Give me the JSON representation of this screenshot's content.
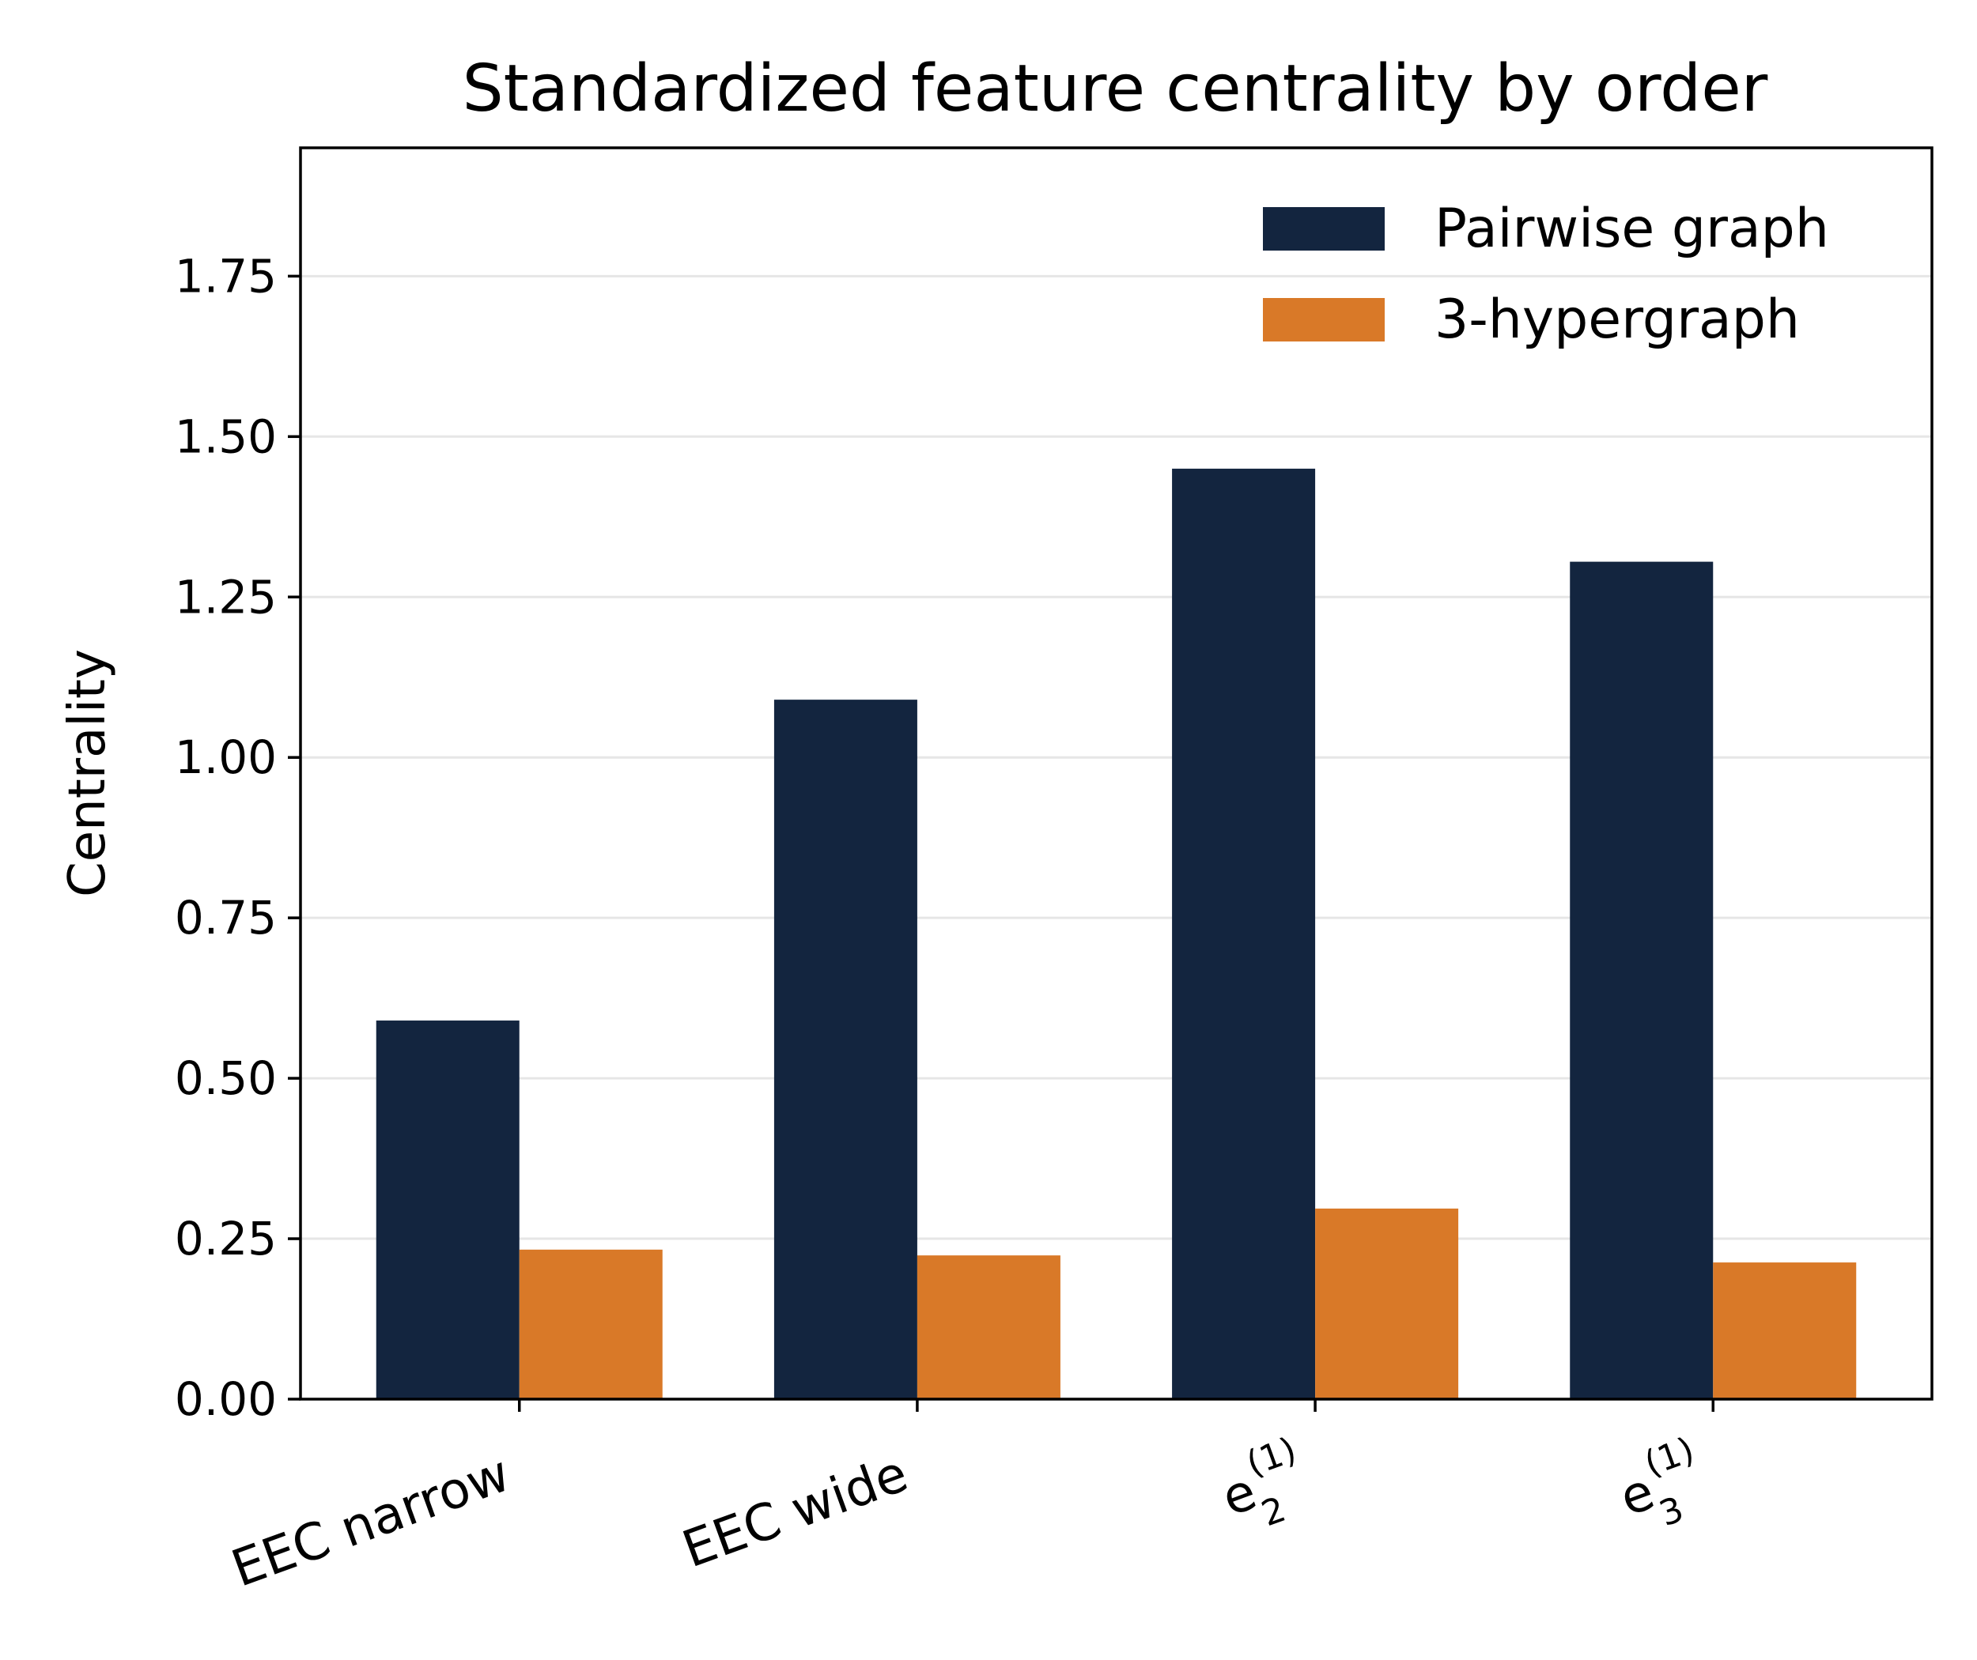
{
  "chart_data": {
    "type": "bar",
    "title": "Standardized feature centrality by order",
    "xlabel": "",
    "ylabel": "Centrality",
    "ylim": [
      0,
      1.95
    ],
    "yticks": [
      "0.00",
      "0.25",
      "0.50",
      "0.75",
      "1.00",
      "1.25",
      "1.50",
      "1.75"
    ],
    "categories": [
      {
        "base": "EEC narrow",
        "sub": "",
        "sup": ""
      },
      {
        "base": "EEC wide",
        "sub": "",
        "sup": ""
      },
      {
        "base": "e",
        "sub": "2",
        "sup": "(1)"
      },
      {
        "base": "e",
        "sub": "3",
        "sup": "(1)"
      }
    ],
    "series": [
      {
        "name": "Pairwise graph",
        "color": "#13253f",
        "values": [
          0.59,
          1.09,
          1.45,
          1.305
        ]
      },
      {
        "name": "3-hypergraph",
        "color": "#d97928",
        "values": [
          0.233,
          0.224,
          0.297,
          0.213
        ]
      }
    ],
    "grid": true,
    "legend_position": "top-right"
  }
}
